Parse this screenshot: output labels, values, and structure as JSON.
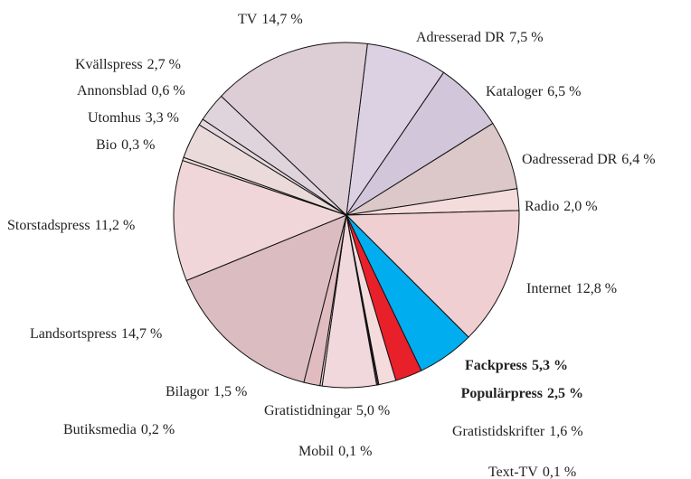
{
  "chart_data": {
    "type": "pie",
    "categories": [
      "Adresserad DR",
      "Kataloger",
      "Oadresserad DR",
      "Radio",
      "Internet",
      "Fackpress",
      "Populärpress",
      "Gratistidskrifter",
      "Text-TV",
      "Mobil",
      "Gratistidningar",
      "Butiksmedia",
      "Bilagor",
      "Landsortspress",
      "Storstadspress",
      "Bio",
      "Utomhus",
      "Annonsblad",
      "Kvällspress",
      "TV"
    ],
    "values": [
      7.5,
      6.5,
      6.4,
      2.0,
      12.8,
      5.3,
      2.5,
      1.6,
      0.1,
      0.1,
      5.0,
      0.2,
      1.5,
      14.7,
      11.2,
      0.3,
      3.3,
      0.6,
      2.7,
      14.7
    ],
    "value_labels": [
      "7,5 %",
      "6,5 %",
      "6,4 %",
      "2,0 %",
      "12,8 %",
      "5,3 %",
      "2,5 %",
      "1,6 %",
      "0,1 %",
      "0,1 %",
      "5,0 %",
      "0,2 %",
      "1,5 %",
      "14,7 %",
      "11,2 %",
      "0,3 %",
      "3,3 %",
      "0,6 %",
      "2,7 %",
      "14,7 %"
    ],
    "colors": [
      "#dcd0e3",
      "#d2c6da",
      "#dcc8c8",
      "#f5dcdc",
      "#f0cfd3",
      "#00aeef",
      "#e8202a",
      "#f5dcdc",
      "#f0dada",
      "#f0dada",
      "#f0d8dc",
      "#eed8da",
      "#e0bcc0",
      "#dbbcc0",
      "#f0d6d8",
      "#eadada",
      "#eadada",
      "#e4d8de",
      "#e0d4dc",
      "#ddcdd5"
    ]
  }
}
